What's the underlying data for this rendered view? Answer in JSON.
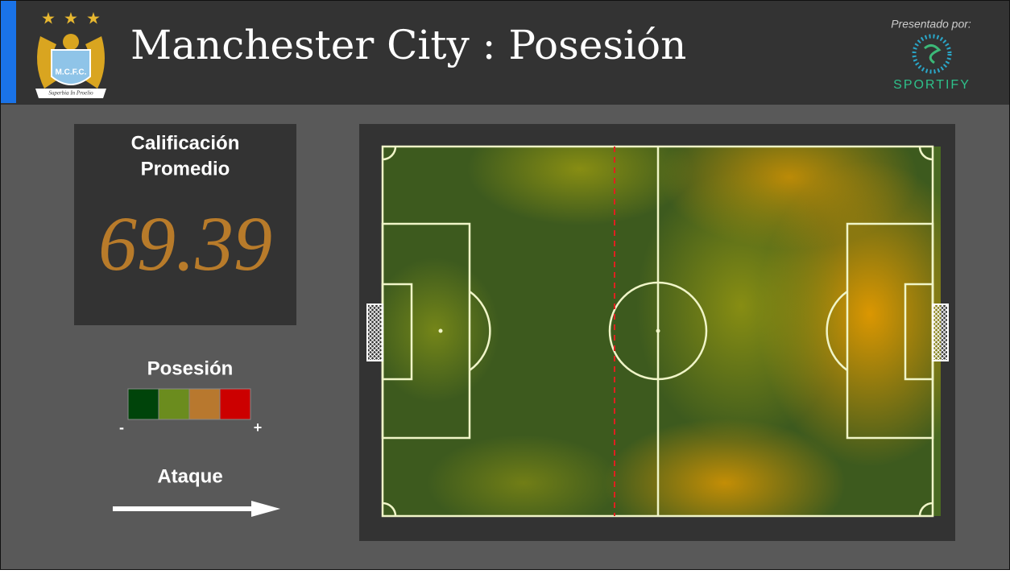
{
  "header": {
    "team": "Manchester City",
    "separator": ":",
    "section": "Posesión",
    "crest_initials": "M.C.F.C.",
    "crest_motto": "Superbia In Proelio",
    "presented_by": "Presentado por:",
    "sponsor": "SPORTIFY"
  },
  "rating": {
    "title_line1": "Calificación",
    "title_line2": "Promedio",
    "value": "69.39"
  },
  "legend": {
    "title": "Posesión",
    "low": "-",
    "high": "+",
    "colors": [
      "#00440a",
      "#6b8c1e",
      "#b8782e",
      "#cc0000"
    ]
  },
  "direction": {
    "label": "Ataque"
  }
}
